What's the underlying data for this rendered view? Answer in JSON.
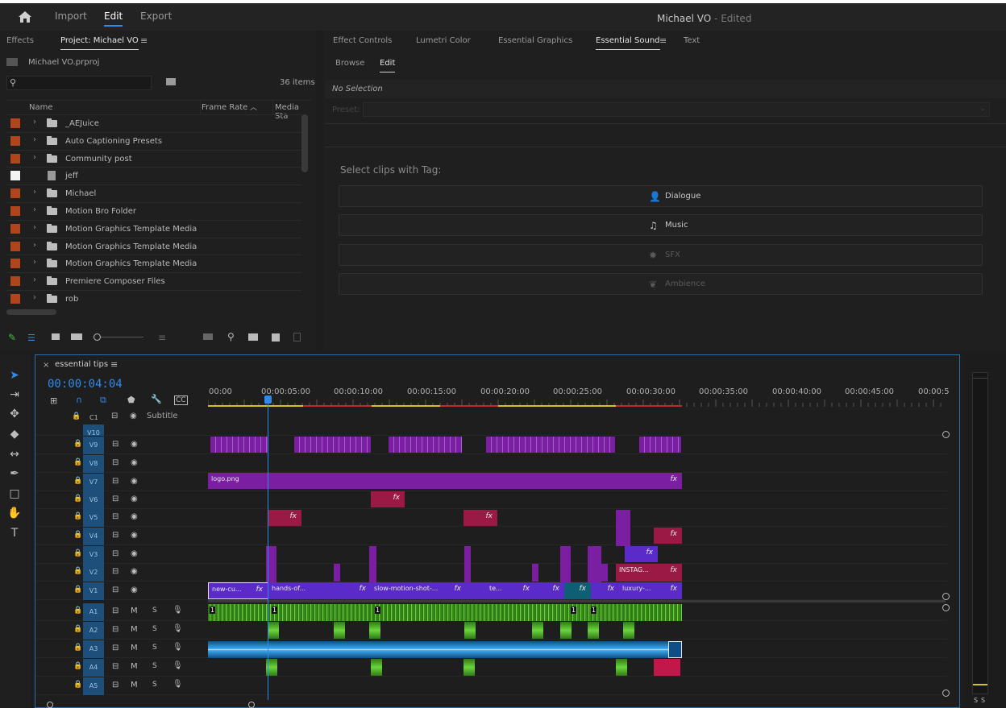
{
  "header": {
    "nav": [
      "Import",
      "Edit",
      "Export"
    ],
    "active_nav": "Edit",
    "title": "Michael VO",
    "title_status": "- Edited"
  },
  "project_panel": {
    "tabs": [
      "Effects",
      "Project: Michael VO"
    ],
    "project_file": "Michael VO.prproj",
    "item_count": "36 items",
    "columns": [
      "Name",
      "Frame Rate",
      "Media Sta"
    ],
    "items": [
      {
        "label": "_AEJuice",
        "type": "folder"
      },
      {
        "label": "Auto Captioning Presets",
        "type": "folder"
      },
      {
        "label": "Community post",
        "type": "folder"
      },
      {
        "label": "jeff",
        "type": "sequence"
      },
      {
        "label": "Michael",
        "type": "folder"
      },
      {
        "label": "Motion Bro Folder",
        "type": "folder"
      },
      {
        "label": "Motion Graphics Template Media",
        "type": "folder"
      },
      {
        "label": "Motion Graphics Template Media",
        "type": "folder"
      },
      {
        "label": "Motion Graphics Template Media",
        "type": "folder"
      },
      {
        "label": "Premiere Composer Files",
        "type": "folder"
      },
      {
        "label": "rob",
        "type": "folder"
      }
    ]
  },
  "essential_panel": {
    "tabs": [
      "Effect Controls",
      "Lumetri Color",
      "Essential Graphics",
      "Essential Sound",
      "Text"
    ],
    "subtabs": [
      "Browse",
      "Edit"
    ],
    "selection": "No Selection",
    "preset_label": "Preset:",
    "select_heading": "Select clips with Tag:",
    "tags": [
      {
        "label": "Dialogue",
        "icon": "dialogue-icon",
        "enabled": true
      },
      {
        "label": "Music",
        "icon": "music-icon",
        "enabled": true
      },
      {
        "label": "SFX",
        "icon": "sfx-icon",
        "enabled": false
      },
      {
        "label": "Ambience",
        "icon": "ambience-icon",
        "enabled": false
      }
    ]
  },
  "timeline": {
    "sequence_name": "essential tips",
    "timecode": "00:00:04:04",
    "subtitle_label": "Subtitle",
    "caption_track": "C1",
    "ruler": [
      "00:00",
      "00:00:05:00",
      "00:00:10:00",
      "00:00:15:00",
      "00:00:20:00",
      "00:00:25:00",
      "00:00:30:00",
      "00:00:35:00",
      "00:00:40:00",
      "00:00:45:00",
      "00:00:5"
    ],
    "video_tracks": [
      "V10",
      "V9",
      "V8",
      "V7",
      "V6",
      "V5",
      "V4",
      "V3",
      "V2",
      "V1"
    ],
    "audio_tracks": [
      "A1",
      "A2",
      "A3",
      "A4",
      "A5"
    ],
    "clip_labels": {
      "logo": "logo.png",
      "instag": "INSTAG...",
      "v1": [
        "new-cu...",
        "hands-of...",
        "slow-motion-shot-...",
        "te...",
        "luxury-..."
      ],
      "fx": "fx",
      "audio_marker": "1"
    },
    "track_toggles": {
      "mute": "M",
      "solo": "S"
    },
    "meter_labels": [
      "S",
      "S"
    ]
  },
  "colors": {
    "accent": "#2d8ceb",
    "video_clip_purple": "#7a1fa2",
    "v1_clip": "#5a2bc9",
    "fx_clip": "#9b1a45",
    "audio_green": "#3a8a1e",
    "audio_blue": "#1a78c2"
  }
}
